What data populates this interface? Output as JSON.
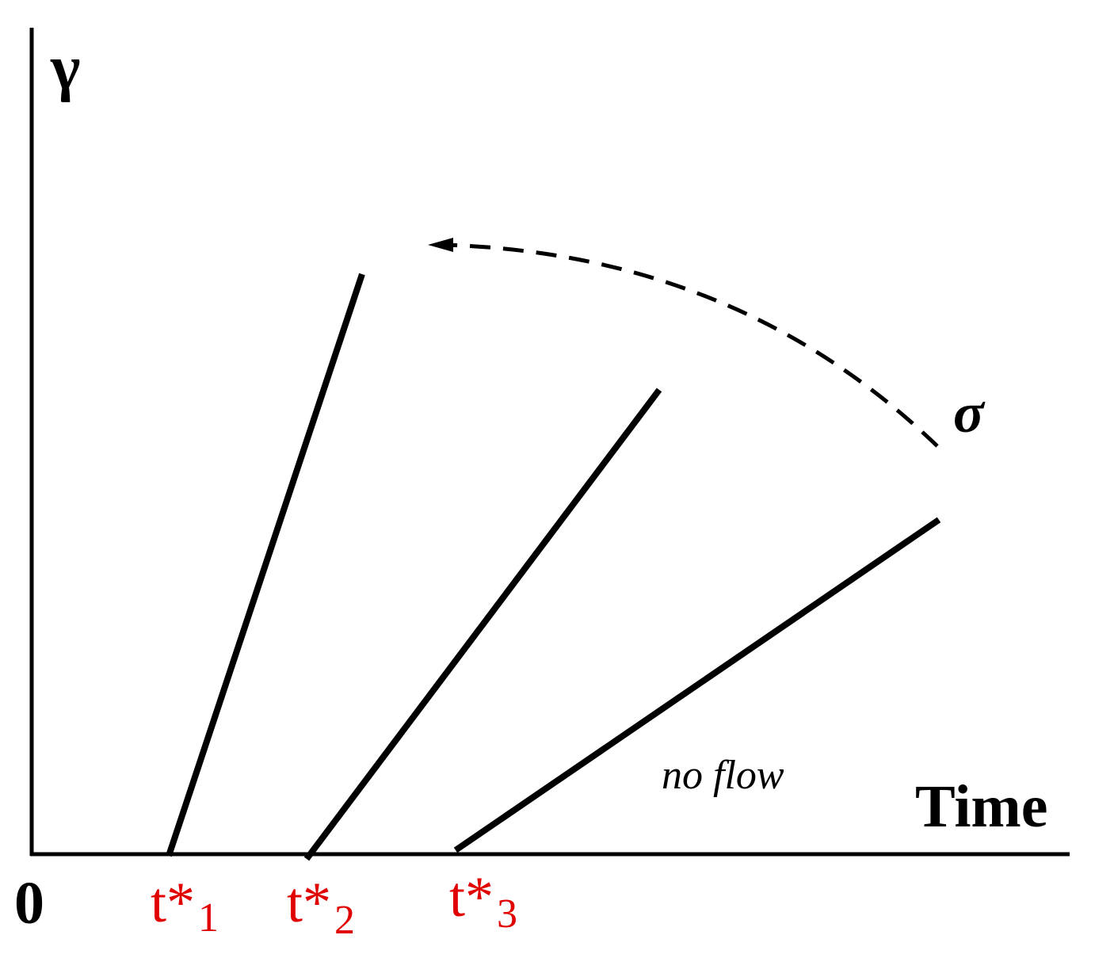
{
  "y_axis_label": "γ",
  "x_axis_label": "Time",
  "origin_label": "0",
  "stress_label": "σ",
  "region_label": "no flow",
  "onset_times": [
    {
      "main": "t*",
      "sub": "1"
    },
    {
      "main": "t*",
      "sub": "2"
    },
    {
      "main": "t*",
      "sub": "3"
    }
  ]
}
